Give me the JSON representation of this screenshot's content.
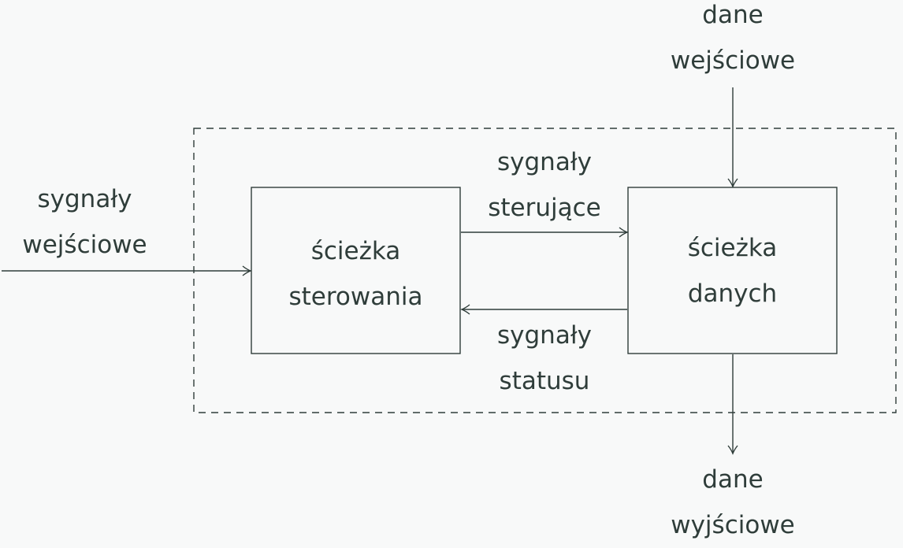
{
  "diagram": {
    "control_path": {
      "line1": "ścieżka",
      "line2": "sterowania"
    },
    "data_path": {
      "line1": "ścieżka",
      "line2": "danych"
    },
    "input_signals": {
      "line1": "sygnały",
      "line2": "wejściowe"
    },
    "control_signals": {
      "line1": "sygnały",
      "line2": "sterujące"
    },
    "status_signals": {
      "line1": "sygnały",
      "line2": "statusu"
    },
    "input_data": {
      "line1": "dane",
      "line2": "wejściowe"
    },
    "output_data": {
      "line1": "dane",
      "line2": "wyjściowe"
    }
  },
  "colors": {
    "stroke": "#2f3d3a",
    "background": "#f8f9f9"
  }
}
